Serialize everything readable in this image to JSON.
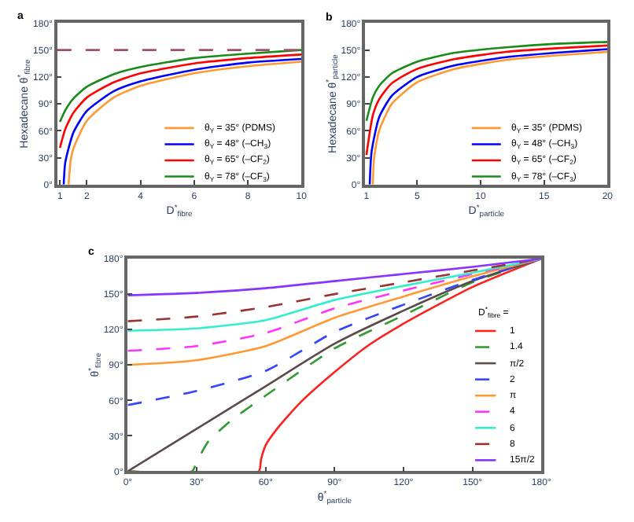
{
  "chart_data": [
    {
      "type": "line",
      "title": "a",
      "xlabel": "D$^{*}$$_{fibre}$",
      "ylabel": "Hexadecane θ$^{*}$$_{fibre}$",
      "xlim": [
        0.9,
        10
      ],
      "xticks": [
        1,
        2,
        4,
        6,
        8,
        10
      ],
      "ylim": [
        0,
        180
      ],
      "yticks": [
        {
          "value": 0,
          "label": "0°"
        },
        {
          "value": 30,
          "label": "30°"
        },
        {
          "value": 60,
          "label": "60°"
        },
        {
          "value": 90,
          "label": "90°"
        },
        {
          "value": 120,
          "label": "120°"
        },
        {
          "value": 150,
          "label": "150°"
        },
        {
          "value": 180,
          "label": "180°"
        }
      ],
      "legend": "bottom right",
      "line_style": "solid",
      "marker": "none",
      "ref_lines": [
        {
          "axis": "y",
          "value": 150,
          "color": "#a05060",
          "line_style": "dashed"
        }
      ],
      "series": [
        {
          "name": "θ$_{Y}$ = 35° (PDMS)",
          "color": "#ff9933",
          "x": [
            1.32,
            1.4,
            1.5,
            2,
            3,
            4,
            6,
            8,
            10
          ],
          "values": [
            0,
            27,
            40,
            71,
            97,
            110,
            124,
            132,
            137
          ]
        },
        {
          "name": "θ$_{Y}$ = 48° (–CH$_{3}$)",
          "color": "#0000ff",
          "x": [
            1.14,
            1.2,
            1.5,
            2,
            3,
            4,
            6,
            8,
            10
          ],
          "values": [
            0,
            25,
            58,
            82,
            104,
            115,
            128,
            136,
            140
          ]
        },
        {
          "name": "θ$_{Y}$ = 65° (–CF$_{2}$)",
          "color": "#ff0000",
          "x": [
            1,
            1.2,
            1.5,
            2,
            3,
            4,
            6,
            8,
            10
          ],
          "values": [
            41,
            62,
            80,
            97,
            114,
            124,
            135,
            141,
            145
          ]
        },
        {
          "name": "θ$_{Y}$ = 78° (–CF$_{3}$)",
          "color": "#1a8a1a",
          "x": [
            1,
            1.2,
            1.5,
            2,
            3,
            4,
            6,
            8,
            10
          ],
          "values": [
            70,
            83,
            96,
            109,
            123,
            131,
            141,
            146,
            150
          ]
        }
      ]
    },
    {
      "type": "line",
      "title": "b",
      "xlabel": "D$^{*}$$_{particle}$",
      "ylabel": "Hexadecane θ$^{*}$$_{particle}$",
      "xlim": [
        0.9,
        20
      ],
      "xticks": [
        1,
        5,
        10,
        15,
        20
      ],
      "ylim": [
        0,
        180
      ],
      "yticks": [
        {
          "value": 0,
          "label": "0°"
        },
        {
          "value": 30,
          "label": "30°"
        },
        {
          "value": 60,
          "label": "60°"
        },
        {
          "value": 90,
          "label": "90°"
        },
        {
          "value": 120,
          "label": "120°"
        },
        {
          "value": 150,
          "label": "150°"
        },
        {
          "value": 180,
          "label": "180°"
        }
      ],
      "legend": "bottom right",
      "line_style": "solid",
      "marker": "none",
      "series": [
        {
          "name": "θ$_{Y}$ = 35° (PDMS)",
          "color": "#ff9933",
          "x": [
            1.5,
            1.6,
            2,
            3,
            5,
            8,
            12,
            16,
            20
          ],
          "values": [
            0,
            29,
            60,
            90,
            114,
            129,
            139,
            144,
            148
          ]
        },
        {
          "name": "θ$_{Y}$ = 48° (–CH$_{3}$)",
          "color": "#0000ff",
          "x": [
            1.26,
            1.4,
            2,
            3,
            5,
            8,
            12,
            16,
            20
          ],
          "values": [
            0,
            36,
            75,
            99,
            120,
            133,
            142,
            147,
            151
          ]
        },
        {
          "name": "θ$_{Y}$ = 65° (–CF$_{2}$)",
          "color": "#ff0000",
          "x": [
            1,
            1.5,
            2,
            3,
            5,
            8,
            12,
            16,
            20
          ],
          "values": [
            33,
            77,
            95,
            113,
            129,
            140,
            148,
            152,
            155
          ]
        },
        {
          "name": "θ$_{Y}$ = 78° (–CF$_{3}$)",
          "color": "#1a8a1a",
          "x": [
            1,
            1.5,
            2,
            3,
            5,
            8,
            12,
            16,
            20
          ],
          "values": [
            71,
            97,
            110,
            124,
            137,
            147,
            153,
            157,
            159
          ]
        }
      ]
    },
    {
      "type": "line",
      "title": "c",
      "xlabel": "θ$^{*}$$_{particle}$",
      "ylabel": "θ$^{*}$$_{fibre}$",
      "legend_title": "D$^{*}$$_{fibre}$ =",
      "xlim": [
        0,
        180
      ],
      "xticks": [
        {
          "value": 0,
          "label": "0°"
        },
        {
          "value": 30,
          "label": "30°"
        },
        {
          "value": 60,
          "label": "60°"
        },
        {
          "value": 90,
          "label": "90°"
        },
        {
          "value": 120,
          "label": "120°"
        },
        {
          "value": 150,
          "label": "150°"
        },
        {
          "value": 180,
          "label": "180°"
        }
      ],
      "ylim": [
        0,
        180
      ],
      "yticks": [
        {
          "value": 0,
          "label": "0°"
        },
        {
          "value": 30,
          "label": "30°"
        },
        {
          "value": 60,
          "label": "60°"
        },
        {
          "value": 90,
          "label": "90°"
        },
        {
          "value": 120,
          "label": "120°"
        },
        {
          "value": 150,
          "label": "150°"
        },
        {
          "value": 180,
          "label": "180°"
        }
      ],
      "legend": "right",
      "marker": "none",
      "series": [
        {
          "name": "1",
          "color": "#ff2020",
          "line_style": "solid",
          "x": [
            0,
            57,
            58,
            60,
            65,
            75,
            90,
            105,
            120,
            150,
            180
          ],
          "values": [
            0,
            0,
            10,
            22,
            36,
            58,
            84,
            107,
            125,
            156,
            180
          ]
        },
        {
          "name": "1.4",
          "color": "#339933",
          "line_style": "dashed",
          "x": [
            0,
            28,
            30,
            35,
            45,
            60,
            90,
            120,
            150,
            180
          ],
          "values": [
            0,
            0,
            8,
            25,
            43,
            64,
            104,
            132,
            160,
            180
          ]
        },
        {
          "name": "π/2",
          "color": "#5a4a4a",
          "line_style": "solid",
          "x": [
            0,
            30,
            60,
            90,
            120,
            150,
            180
          ],
          "values": [
            0,
            36,
            72,
            108,
            136,
            161,
            180
          ]
        },
        {
          "name": "2",
          "color": "#3344ff",
          "line_style": "dashed",
          "x": [
            0,
            30,
            60,
            90,
            120,
            150,
            180
          ],
          "values": [
            56,
            68,
            85,
            118,
            141,
            162,
            180
          ]
        },
        {
          "name": "π",
          "color": "#ff9933",
          "line_style": "solid",
          "x": [
            0,
            30,
            60,
            90,
            120,
            150,
            180
          ],
          "values": [
            90,
            94,
            106,
            130,
            148,
            165,
            180
          ]
        },
        {
          "name": "4",
          "color": "#ff33ff",
          "line_style": "dashed",
          "x": [
            0,
            30,
            60,
            90,
            120,
            150,
            180
          ],
          "values": [
            102,
            106,
            117,
            138,
            153,
            167,
            180
          ]
        },
        {
          "name": "6",
          "color": "#33eecc",
          "line_style": "solid",
          "x": [
            0,
            30,
            60,
            90,
            120,
            150,
            180
          ],
          "values": [
            119,
            121,
            128,
            145,
            157,
            168,
            180
          ]
        },
        {
          "name": "8",
          "color": "#993333",
          "line_style": "dashed",
          "x": [
            0,
            30,
            60,
            90,
            120,
            150,
            180
          ],
          "values": [
            127,
            131,
            139,
            150,
            160,
            170,
            180
          ]
        },
        {
          "name": "15π/2",
          "color": "#8833ff",
          "line_style": "solid",
          "x": [
            0,
            30,
            60,
            90,
            120,
            150,
            180
          ],
          "values": [
            149,
            151,
            155,
            161,
            167,
            173,
            180
          ]
        }
      ]
    }
  ]
}
